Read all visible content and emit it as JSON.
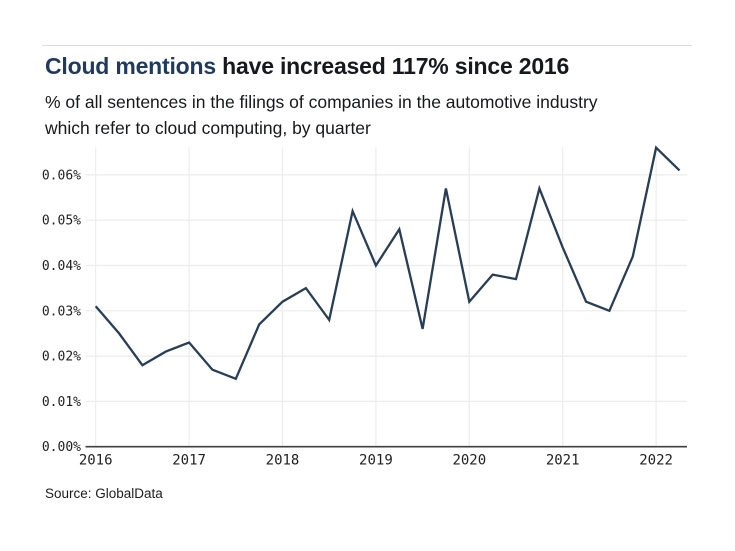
{
  "header": {
    "title_highlight": "Cloud mentions",
    "title_rest": " have increased 117% since 2016",
    "subtitle_lines": [
      "% of all sentences in the filings of companies in the automotive industry",
      "which refer to cloud computing, by quarter"
    ]
  },
  "footer": {
    "source": "Source: GlobalData"
  },
  "colors": {
    "accent_title": "#1e3a5f",
    "line": "#283e56",
    "grid": "#ececec",
    "axis": "#3f3f3f",
    "tick_text": "#1f1f1f"
  },
  "chart_data": {
    "type": "line",
    "title": "Cloud mentions have increased 117% since 2016",
    "subtitle": "% of all sentences in the filings of companies in the automotive industry which refer to cloud computing, by quarter",
    "xlabel": "",
    "ylabel": "",
    "x_unit": "quarter",
    "categories": [
      "2016 Q1",
      "2016 Q2",
      "2016 Q3",
      "2016 Q4",
      "2017 Q1",
      "2017 Q2",
      "2017 Q3",
      "2017 Q4",
      "2018 Q1",
      "2018 Q2",
      "2018 Q3",
      "2018 Q4",
      "2019 Q1",
      "2019 Q2",
      "2019 Q3",
      "2019 Q4",
      "2020 Q1",
      "2020 Q2",
      "2020 Q3",
      "2020 Q4",
      "2021 Q1",
      "2021 Q2",
      "2021 Q3",
      "2021 Q4",
      "2022 Q1",
      "2022 Q2"
    ],
    "series": [
      {
        "name": "Cloud mentions (% of sentences)",
        "values": [
          0.031,
          0.025,
          0.018,
          0.021,
          0.023,
          0.017,
          0.015,
          0.027,
          0.032,
          0.035,
          0.028,
          0.052,
          0.04,
          0.048,
          0.026,
          0.057,
          0.032,
          0.038,
          0.037,
          0.057,
          0.044,
          0.032,
          0.03,
          0.042,
          0.066,
          0.061
        ]
      }
    ],
    "x_tick_labels": [
      "2016",
      "2017",
      "2018",
      "2019",
      "2020",
      "2021",
      "2022"
    ],
    "y_ticks": [
      0.0,
      0.01,
      0.02,
      0.03,
      0.04,
      0.05,
      0.06
    ],
    "y_tick_labels": [
      "0.00%",
      "0.01%",
      "0.02%",
      "0.03%",
      "0.04%",
      "0.05%",
      "0.06%"
    ],
    "ylim": [
      0,
      0.0661
    ],
    "grid": "on",
    "legend": "off"
  }
}
